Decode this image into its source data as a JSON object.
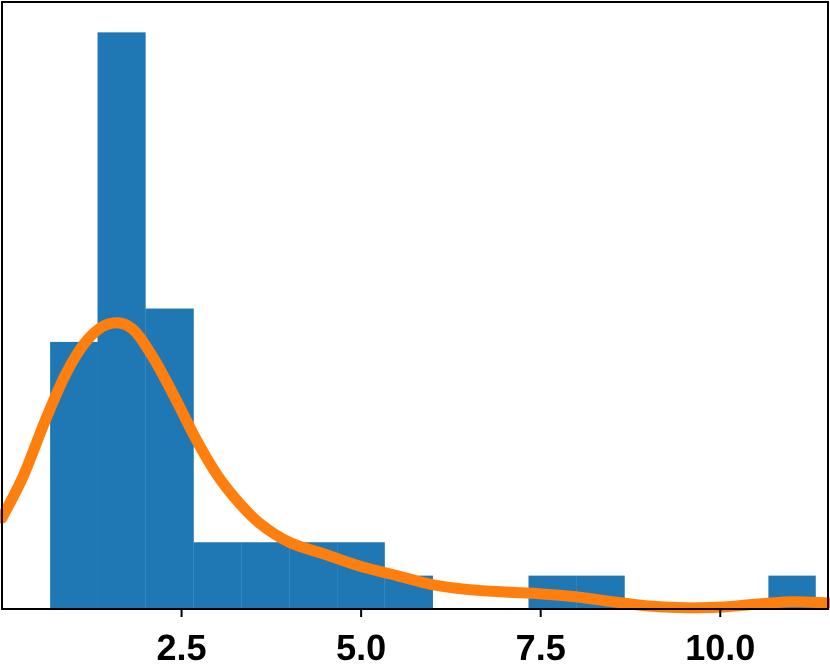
{
  "chart_data": {
    "type": "bar",
    "title": "",
    "xlabel": "",
    "ylabel": "",
    "xlim": [
      0.0,
      11.5
    ],
    "ylim": [
      0,
      1.0
    ],
    "xticks": [
      2.5,
      5.0,
      7.5,
      10.0
    ],
    "xtick_labels": [
      "2.5",
      "5.0",
      "7.5",
      "10.0"
    ],
    "yticks_visible": false,
    "grid": false,
    "legend": "none",
    "colors": {
      "bars": "#1f77b4",
      "kde": "#ff7f0e",
      "axes": "#000000"
    },
    "histogram": {
      "bins": [
        {
          "x0": 0.67,
          "x1": 1.33,
          "height": 0.44
        },
        {
          "x0": 1.33,
          "x1": 2.0,
          "height": 0.95
        },
        {
          "x0": 2.0,
          "x1": 2.67,
          "height": 0.495
        },
        {
          "x0": 2.67,
          "x1": 3.33,
          "height": 0.11
        },
        {
          "x0": 3.33,
          "x1": 4.0,
          "height": 0.11
        },
        {
          "x0": 4.0,
          "x1": 4.67,
          "height": 0.11
        },
        {
          "x0": 4.67,
          "x1": 5.33,
          "height": 0.11
        },
        {
          "x0": 5.33,
          "x1": 6.0,
          "height": 0.055
        },
        {
          "x0": 7.33,
          "x1": 8.0,
          "height": 0.055
        },
        {
          "x0": 8.0,
          "x1": 8.67,
          "height": 0.055
        },
        {
          "x0": 10.67,
          "x1": 11.33,
          "height": 0.055
        }
      ]
    },
    "kde": {
      "x": [
        0.0,
        0.3,
        0.6,
        0.9,
        1.2,
        1.5,
        1.8,
        2.1,
        2.4,
        2.7,
        3.0,
        3.3,
        3.6,
        4.0,
        4.5,
        5.0,
        5.5,
        6.0,
        6.5,
        7.0,
        7.5,
        8.0,
        8.5,
        9.0,
        9.5,
        10.0,
        10.5,
        11.0,
        11.5
      ],
      "y": [
        0.15,
        0.22,
        0.31,
        0.39,
        0.445,
        0.47,
        0.463,
        0.415,
        0.35,
        0.28,
        0.22,
        0.175,
        0.14,
        0.11,
        0.09,
        0.07,
        0.055,
        0.04,
        0.032,
        0.028,
        0.025,
        0.02,
        0.012,
        0.005,
        0.002,
        0.003,
        0.008,
        0.012,
        0.01
      ]
    }
  }
}
